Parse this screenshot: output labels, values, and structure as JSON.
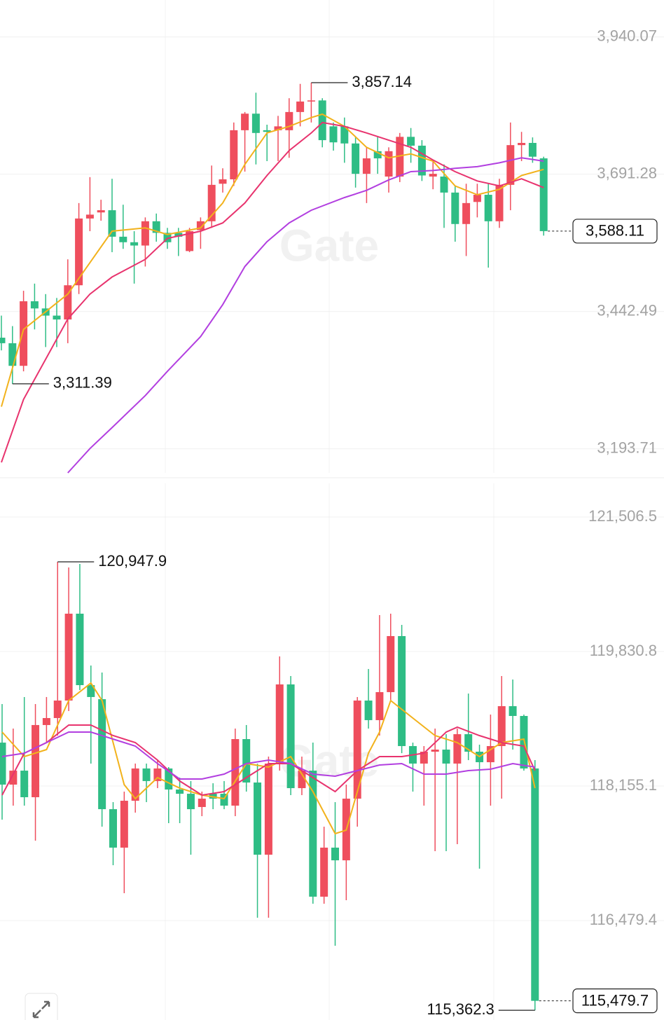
{
  "chart_data": [
    {
      "type": "candlestick",
      "watermark": "Gate",
      "ylim": [
        3150,
        4007
      ],
      "yticks": [
        {
          "value": 3940.07,
          "label": "3,940.07"
        },
        {
          "value": 3691.28,
          "label": "3,691.28"
        },
        {
          "value": 3442.49,
          "label": "3,442.49"
        },
        {
          "value": 3193.71,
          "label": "3,193.71"
        }
      ],
      "grid": true,
      "up_color": "#ef4e5d",
      "down_color": "#2ebd85",
      "open": [
        3395,
        3385,
        3344,
        3461,
        3448,
        3435,
        3428,
        3490,
        3611,
        3622,
        3626,
        3578,
        3568,
        3562,
        3606,
        3585,
        3585,
        3552,
        3590,
        3606,
        3674,
        3682,
        3771,
        3801,
        3771,
        3771,
        3771,
        3804,
        3823,
        3825,
        3778,
        3778,
        3747,
        3692,
        3733,
        3687,
        3687,
        3759,
        3743,
        3687,
        3687,
        3658,
        3601,
        3641,
        3654,
        3606,
        3672,
        3744,
        3748,
        3720
      ],
      "high": [
        3435,
        3416,
        3480,
        3493,
        3474,
        3467,
        3537,
        3639,
        3686,
        3645,
        3683,
        3636,
        3588,
        3613,
        3620,
        3594,
        3594,
        3594,
        3613,
        3707,
        3702,
        3785,
        3804,
        3839,
        3781,
        3797,
        3829,
        3855,
        3857.14,
        3829,
        3785,
        3794,
        3759,
        3740,
        3759,
        3740,
        3766,
        3775,
        3753,
        3715,
        3709,
        3670,
        3674,
        3674,
        3674,
        3683,
        3785,
        3768,
        3758,
        3723
      ],
      "low": [
        3372,
        3311.39,
        3334,
        3410,
        3378,
        3378,
        3385,
        3474,
        3588,
        3607,
        3550,
        3556,
        3493,
        3524,
        3569,
        3556,
        3543,
        3550,
        3556,
        3594,
        3658,
        3670,
        3696,
        3709,
        3715,
        3715,
        3721,
        3778,
        3785,
        3740,
        3734,
        3712,
        3667,
        3639,
        3692,
        3658,
        3677,
        3712,
        3679,
        3664,
        3594,
        3569,
        3543,
        3613,
        3522,
        3594,
        3626,
        3715,
        3712,
        3580
      ],
      "close": [
        3385,
        3344,
        3461,
        3448,
        3435,
        3428,
        3490,
        3611,
        3618,
        3626,
        3578,
        3568,
        3562,
        3606,
        3585,
        3568,
        3578,
        3588,
        3606,
        3672,
        3682,
        3771,
        3801,
        3766,
        3768,
        3778,
        3804,
        3823,
        3825,
        3753,
        3749,
        3747,
        3692,
        3720,
        3720,
        3733,
        3759,
        3743,
        3689,
        3692,
        3658,
        3601,
        3639,
        3654,
        3606,
        3672,
        3744,
        3748,
        3723,
        3588.11
      ],
      "series": [
        {
          "color": "#f2b21c",
          "x": [
            0,
            2,
            6,
            8,
            10,
            13,
            15,
            18,
            20,
            22,
            24,
            26,
            28,
            29,
            31,
            33,
            35,
            37,
            39,
            41,
            43,
            45,
            47,
            49
          ],
          "values": [
            3270,
            3410,
            3474,
            3531,
            3588,
            3594,
            3582,
            3594,
            3639,
            3709,
            3766,
            3778,
            3794,
            3800,
            3778,
            3740,
            3721,
            3728,
            3715,
            3670,
            3654,
            3664,
            3689,
            3700
          ]
        },
        {
          "color": "#e8336e",
          "x": [
            0,
            2,
            6,
            8,
            10,
            13,
            15,
            18,
            20,
            22,
            24,
            26,
            28,
            29,
            31,
            33,
            35,
            37,
            39,
            41,
            43,
            45,
            47,
            49
          ],
          "values": [
            3169,
            3283,
            3429,
            3474,
            3505,
            3537,
            3575,
            3588,
            3603,
            3639,
            3689,
            3734,
            3766,
            3785,
            3778,
            3766,
            3753,
            3740,
            3717,
            3696,
            3679,
            3670,
            3683,
            3667
          ]
        },
        {
          "color": "#b23fe0",
          "x": [
            6,
            8,
            10,
            13,
            15,
            18,
            20,
            22,
            24,
            26,
            28,
            31,
            33,
            35,
            37,
            39,
            41,
            43,
            45,
            47,
            49
          ],
          "values": [
            3150,
            3194,
            3232,
            3290,
            3334,
            3397,
            3455,
            3524,
            3569,
            3603,
            3626,
            3649,
            3662,
            3681,
            3696,
            3698,
            3702,
            3705,
            3712,
            3721,
            3715
          ]
        }
      ],
      "high_label": {
        "value": 3857.14,
        "label": "3,857.14"
      },
      "low_label": {
        "value": 3311.39,
        "label": "3,311.39"
      },
      "last_label": {
        "value": 3588.11,
        "label": "3,588.11"
      }
    },
    {
      "type": "candlestick",
      "watermark": "Gate",
      "ylim": [
        115241,
        121925
      ],
      "yticks": [
        {
          "value": 121506.5,
          "label": "121,506.5"
        },
        {
          "value": 119830.8,
          "label": "119,830.8"
        },
        {
          "value": 118155.1,
          "label": "118,155.1"
        },
        {
          "value": 116479.4,
          "label": "116,479.4"
        }
      ],
      "grid": true,
      "up_color": "#ef4e5d",
      "down_color": "#2ebd85",
      "open": [
        118696,
        118173,
        118347,
        118016,
        118915,
        119002,
        119220,
        120302,
        119412,
        119237,
        117867,
        117388,
        117972,
        118374,
        118217,
        118374,
        118112,
        118059,
        117894,
        118059,
        118059,
        117911,
        118740,
        118199,
        117300,
        118435,
        119421,
        118129,
        118347,
        116777,
        117388,
        117230,
        117998,
        119220,
        118976,
        119325,
        120023,
        118653,
        118435,
        118583,
        118609,
        118435,
        118801,
        118583,
        118452,
        118653,
        119150,
        119028,
        118374
      ],
      "high": [
        119176,
        118871,
        119264,
        119176,
        119264,
        120947.9,
        120878,
        120922,
        119656,
        119569,
        117955,
        118086,
        118435,
        118435,
        118478,
        118391,
        118260,
        118217,
        118086,
        118190,
        118217,
        118871,
        118915,
        118435,
        118522,
        119770,
        119525,
        118522,
        118696,
        117649,
        117955,
        118173,
        119264,
        119613,
        120285,
        120302,
        120162,
        118696,
        118653,
        118871,
        118801,
        118871,
        119307,
        118670,
        119045,
        119525,
        119482,
        119045,
        118478
      ],
      "low": [
        117737,
        117911,
        117911,
        117475,
        118696,
        118784,
        119089,
        119351,
        118435,
        117649,
        117169,
        116820,
        117824,
        117955,
        118129,
        117693,
        117693,
        117300,
        117780,
        117867,
        117867,
        117780,
        118086,
        116515,
        116515,
        118347,
        118042,
        118042,
        116689,
        116689,
        116166,
        116733,
        117649,
        118871,
        118784,
        119220,
        118565,
        118086,
        117911,
        117344,
        117344,
        117431,
        118478,
        117126,
        117911,
        117998,
        118609,
        118347,
        115362.3
      ],
      "close": [
        118173,
        118347,
        118016,
        118915,
        119002,
        119220,
        120302,
        119412,
        119264,
        117867,
        117388,
        117972,
        118374,
        118217,
        118374,
        118112,
        118059,
        117867,
        117998,
        117998,
        117911,
        118740,
        118199,
        117300,
        118435,
        119421,
        118129,
        118347,
        116777,
        117388,
        117230,
        117998,
        119220,
        118976,
        119325,
        120023,
        118653,
        118435,
        118583,
        118609,
        118435,
        118801,
        118583,
        118452,
        118653,
        119150,
        119028,
        118374,
        115479.7
      ],
      "series": [
        {
          "color": "#f2b21c",
          "x": [
            0,
            2,
            4,
            6,
            8,
            9,
            11,
            12,
            14,
            16,
            18,
            20,
            22,
            24,
            26,
            28,
            29,
            30,
            31,
            32,
            33,
            34,
            35,
            37,
            39,
            41,
            43,
            45,
            47,
            48
          ],
          "values": [
            118827,
            118522,
            118609,
            119220,
            119438,
            119220,
            118173,
            117998,
            118260,
            118129,
            118042,
            117998,
            118435,
            118391,
            118522,
            118086,
            117824,
            117562,
            117606,
            118086,
            118565,
            118827,
            119220,
            119002,
            118784,
            118696,
            118522,
            118696,
            118740,
            118129
          ]
        },
        {
          "color": "#e8336e",
          "x": [
            0,
            2,
            4,
            6,
            8,
            10,
            12,
            14,
            16,
            18,
            20,
            22,
            24,
            26,
            28,
            30,
            32,
            34,
            36,
            38,
            40,
            41,
            43,
            45,
            47,
            48
          ],
          "values": [
            118042,
            118565,
            118696,
            118915,
            118915,
            118784,
            118696,
            118478,
            118217,
            118042,
            118086,
            118260,
            118435,
            118435,
            118260,
            118086,
            118347,
            118522,
            118522,
            118565,
            118827,
            118888,
            118784,
            118696,
            118653,
            118347
          ]
        },
        {
          "color": "#b23fe0",
          "x": [
            0,
            2,
            4,
            6,
            8,
            10,
            12,
            14,
            16,
            18,
            20,
            22,
            24,
            26,
            28,
            30,
            32,
            34,
            36,
            38,
            40,
            42,
            44,
            46,
            48
          ],
          "values": [
            118522,
            118565,
            118696,
            118827,
            118827,
            118740,
            118653,
            118435,
            118243,
            118243,
            118304,
            118435,
            118478,
            118435,
            118304,
            118278,
            118347,
            118417,
            118435,
            118304,
            118304,
            118347,
            118365,
            118435,
            118391
          ]
        }
      ],
      "high_label": {
        "value": 120947.9,
        "label": "120,947.9"
      },
      "low_label": {
        "value": 115362.3,
        "label": "115,362.3"
      },
      "last_label": {
        "value": 115479.7,
        "label": "115,479.7"
      }
    }
  ]
}
